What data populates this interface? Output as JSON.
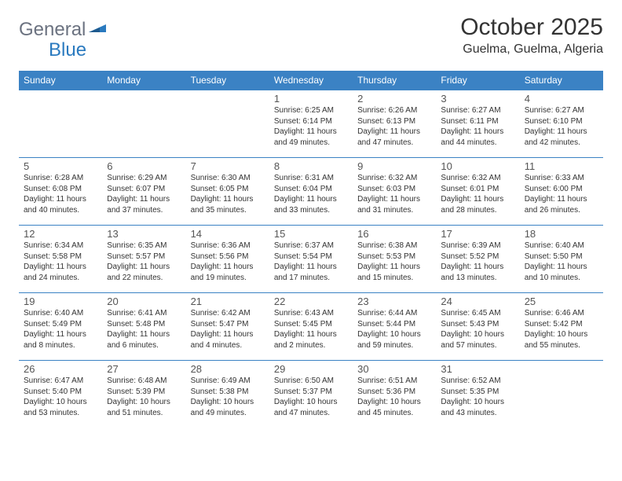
{
  "brand": {
    "part1": "General",
    "part2": "Blue"
  },
  "title": "October 2025",
  "location": "Guelma, Guelma, Algeria",
  "colors": {
    "header_bg": "#3b82c4",
    "header_text": "#ffffff",
    "brand_gray": "#6b7280",
    "brand_blue": "#2a7abf",
    "border": "#3b82c4"
  },
  "weekdays": [
    "Sunday",
    "Monday",
    "Tuesday",
    "Wednesday",
    "Thursday",
    "Friday",
    "Saturday"
  ],
  "weeks": [
    [
      {
        "n": "",
        "sr": "",
        "ss": "",
        "dl": ""
      },
      {
        "n": "",
        "sr": "",
        "ss": "",
        "dl": ""
      },
      {
        "n": "",
        "sr": "",
        "ss": "",
        "dl": ""
      },
      {
        "n": "1",
        "sr": "Sunrise: 6:25 AM",
        "ss": "Sunset: 6:14 PM",
        "dl": "Daylight: 11 hours and 49 minutes."
      },
      {
        "n": "2",
        "sr": "Sunrise: 6:26 AM",
        "ss": "Sunset: 6:13 PM",
        "dl": "Daylight: 11 hours and 47 minutes."
      },
      {
        "n": "3",
        "sr": "Sunrise: 6:27 AM",
        "ss": "Sunset: 6:11 PM",
        "dl": "Daylight: 11 hours and 44 minutes."
      },
      {
        "n": "4",
        "sr": "Sunrise: 6:27 AM",
        "ss": "Sunset: 6:10 PM",
        "dl": "Daylight: 11 hours and 42 minutes."
      }
    ],
    [
      {
        "n": "5",
        "sr": "Sunrise: 6:28 AM",
        "ss": "Sunset: 6:08 PM",
        "dl": "Daylight: 11 hours and 40 minutes."
      },
      {
        "n": "6",
        "sr": "Sunrise: 6:29 AM",
        "ss": "Sunset: 6:07 PM",
        "dl": "Daylight: 11 hours and 37 minutes."
      },
      {
        "n": "7",
        "sr": "Sunrise: 6:30 AM",
        "ss": "Sunset: 6:05 PM",
        "dl": "Daylight: 11 hours and 35 minutes."
      },
      {
        "n": "8",
        "sr": "Sunrise: 6:31 AM",
        "ss": "Sunset: 6:04 PM",
        "dl": "Daylight: 11 hours and 33 minutes."
      },
      {
        "n": "9",
        "sr": "Sunrise: 6:32 AM",
        "ss": "Sunset: 6:03 PM",
        "dl": "Daylight: 11 hours and 31 minutes."
      },
      {
        "n": "10",
        "sr": "Sunrise: 6:32 AM",
        "ss": "Sunset: 6:01 PM",
        "dl": "Daylight: 11 hours and 28 minutes."
      },
      {
        "n": "11",
        "sr": "Sunrise: 6:33 AM",
        "ss": "Sunset: 6:00 PM",
        "dl": "Daylight: 11 hours and 26 minutes."
      }
    ],
    [
      {
        "n": "12",
        "sr": "Sunrise: 6:34 AM",
        "ss": "Sunset: 5:58 PM",
        "dl": "Daylight: 11 hours and 24 minutes."
      },
      {
        "n": "13",
        "sr": "Sunrise: 6:35 AM",
        "ss": "Sunset: 5:57 PM",
        "dl": "Daylight: 11 hours and 22 minutes."
      },
      {
        "n": "14",
        "sr": "Sunrise: 6:36 AM",
        "ss": "Sunset: 5:56 PM",
        "dl": "Daylight: 11 hours and 19 minutes."
      },
      {
        "n": "15",
        "sr": "Sunrise: 6:37 AM",
        "ss": "Sunset: 5:54 PM",
        "dl": "Daylight: 11 hours and 17 minutes."
      },
      {
        "n": "16",
        "sr": "Sunrise: 6:38 AM",
        "ss": "Sunset: 5:53 PM",
        "dl": "Daylight: 11 hours and 15 minutes."
      },
      {
        "n": "17",
        "sr": "Sunrise: 6:39 AM",
        "ss": "Sunset: 5:52 PM",
        "dl": "Daylight: 11 hours and 13 minutes."
      },
      {
        "n": "18",
        "sr": "Sunrise: 6:40 AM",
        "ss": "Sunset: 5:50 PM",
        "dl": "Daylight: 11 hours and 10 minutes."
      }
    ],
    [
      {
        "n": "19",
        "sr": "Sunrise: 6:40 AM",
        "ss": "Sunset: 5:49 PM",
        "dl": "Daylight: 11 hours and 8 minutes."
      },
      {
        "n": "20",
        "sr": "Sunrise: 6:41 AM",
        "ss": "Sunset: 5:48 PM",
        "dl": "Daylight: 11 hours and 6 minutes."
      },
      {
        "n": "21",
        "sr": "Sunrise: 6:42 AM",
        "ss": "Sunset: 5:47 PM",
        "dl": "Daylight: 11 hours and 4 minutes."
      },
      {
        "n": "22",
        "sr": "Sunrise: 6:43 AM",
        "ss": "Sunset: 5:45 PM",
        "dl": "Daylight: 11 hours and 2 minutes."
      },
      {
        "n": "23",
        "sr": "Sunrise: 6:44 AM",
        "ss": "Sunset: 5:44 PM",
        "dl": "Daylight: 10 hours and 59 minutes."
      },
      {
        "n": "24",
        "sr": "Sunrise: 6:45 AM",
        "ss": "Sunset: 5:43 PM",
        "dl": "Daylight: 10 hours and 57 minutes."
      },
      {
        "n": "25",
        "sr": "Sunrise: 6:46 AM",
        "ss": "Sunset: 5:42 PM",
        "dl": "Daylight: 10 hours and 55 minutes."
      }
    ],
    [
      {
        "n": "26",
        "sr": "Sunrise: 6:47 AM",
        "ss": "Sunset: 5:40 PM",
        "dl": "Daylight: 10 hours and 53 minutes."
      },
      {
        "n": "27",
        "sr": "Sunrise: 6:48 AM",
        "ss": "Sunset: 5:39 PM",
        "dl": "Daylight: 10 hours and 51 minutes."
      },
      {
        "n": "28",
        "sr": "Sunrise: 6:49 AM",
        "ss": "Sunset: 5:38 PM",
        "dl": "Daylight: 10 hours and 49 minutes."
      },
      {
        "n": "29",
        "sr": "Sunrise: 6:50 AM",
        "ss": "Sunset: 5:37 PM",
        "dl": "Daylight: 10 hours and 47 minutes."
      },
      {
        "n": "30",
        "sr": "Sunrise: 6:51 AM",
        "ss": "Sunset: 5:36 PM",
        "dl": "Daylight: 10 hours and 45 minutes."
      },
      {
        "n": "31",
        "sr": "Sunrise: 6:52 AM",
        "ss": "Sunset: 5:35 PM",
        "dl": "Daylight: 10 hours and 43 minutes."
      },
      {
        "n": "",
        "sr": "",
        "ss": "",
        "dl": ""
      }
    ]
  ]
}
